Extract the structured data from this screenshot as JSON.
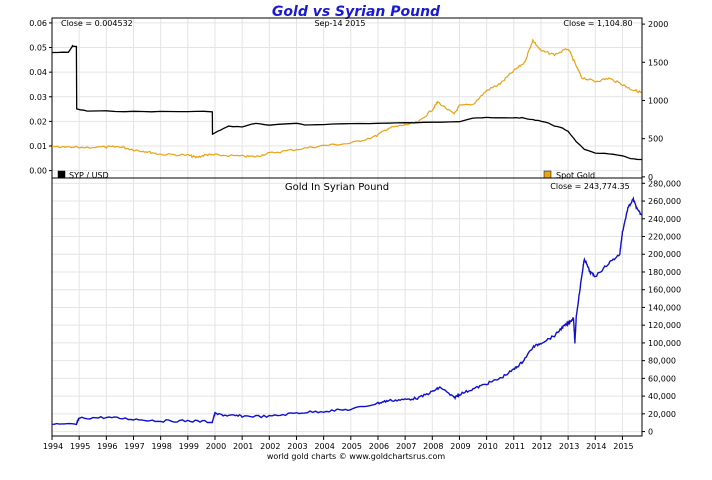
{
  "colors": {
    "title": "#1a1ad0",
    "syp": "#000000",
    "gold": "#e8a317",
    "gold_syp": "#1010cc",
    "grid": "#e4e4e4",
    "frame": "#000000"
  },
  "chart_data": [
    {
      "type": "line",
      "title": "Gold vs Syrian Pound",
      "date_label": "Sep-14  2015",
      "left_close": "Close = 0.004532",
      "right_close": "Close = 1,104.80",
      "ylim_left": [
        -0.003,
        0.062
      ],
      "ylim_right": [
        -15,
        2080
      ],
      "yticks_left": [
        "0.00",
        "0.01",
        "0.02",
        "0.03",
        "0.04",
        "0.05",
        "0.06"
      ],
      "yticks_left_values": [
        0,
        0.01,
        0.02,
        0.03,
        0.04,
        0.05,
        0.06
      ],
      "yticks_right": [
        "0",
        "500",
        "1000",
        "1500",
        "2000"
      ],
      "yticks_right_values": [
        0,
        500,
        1000,
        1500,
        2000
      ],
      "series": [
        {
          "name": "SYP / USD",
          "axis": "left",
          "x": [
            1994.0,
            1994.6,
            1994.75,
            1994.76,
            1994.9,
            1994.91,
            1995.3,
            1996.0,
            1997.0,
            1998.0,
            1999.0,
            1999.9,
            1999.91,
            2000.2,
            2000.5,
            2001.0,
            2001.5,
            2002.0,
            2003.0,
            2003.3,
            2004.0,
            2005.0,
            2006.0,
            2007.0,
            2008.0,
            2009.0,
            2009.5,
            2010.0,
            2010.5,
            2011.0,
            2011.3,
            2011.6,
            2011.9,
            2012.2,
            2012.5,
            2012.8,
            2013.0,
            2013.3,
            2013.6,
            2014.0,
            2014.5,
            2015.0,
            2015.3,
            2015.7
          ],
          "values": [
            0.048,
            0.048,
            0.0505,
            0.0505,
            0.0505,
            0.025,
            0.0242,
            0.0242,
            0.024,
            0.024,
            0.024,
            0.024,
            0.0148,
            0.0165,
            0.018,
            0.0178,
            0.0192,
            0.0185,
            0.0192,
            0.0185,
            0.0188,
            0.0191,
            0.0192,
            0.0194,
            0.0196,
            0.02,
            0.0214,
            0.0215,
            0.0214,
            0.0215,
            0.0214,
            0.0208,
            0.0204,
            0.0196,
            0.0182,
            0.0172,
            0.016,
            0.0118,
            0.0085,
            0.0072,
            0.0068,
            0.006,
            0.0048,
            0.0045
          ]
        },
        {
          "name": "Spot Gold",
          "axis": "right",
          "x": [
            1994.0,
            1995.0,
            1996.0,
            1996.5,
            1997.0,
            1997.5,
            1998.0,
            1999.0,
            1999.3,
            1999.7,
            2000.0,
            2001.0,
            2001.5,
            2002.0,
            2003.0,
            2004.0,
            2005.0,
            2005.9,
            2006.4,
            2007.0,
            2007.5,
            2008.0,
            2008.2,
            2008.8,
            2009.0,
            2009.5,
            2010.0,
            2010.5,
            2011.0,
            2011.4,
            2011.7,
            2012.0,
            2012.5,
            2013.0,
            2013.3,
            2013.5,
            2014.0,
            2014.5,
            2015.0,
            2015.3,
            2015.7
          ],
          "values": [
            385,
            385,
            390,
            395,
            355,
            330,
            295,
            285,
            255,
            290,
            285,
            270,
            265,
            310,
            360,
            410,
            440,
            530,
            640,
            680,
            720,
            880,
            980,
            820,
            930,
            950,
            1130,
            1220,
            1390,
            1500,
            1790,
            1650,
            1600,
            1680,
            1450,
            1300,
            1250,
            1290,
            1210,
            1150,
            1105
          ]
        }
      ],
      "legend": [
        "SYP / USD",
        "Spot Gold"
      ]
    },
    {
      "type": "line",
      "title": "Gold In Syrian Pound",
      "close": "Close = 243,774.35",
      "ylim": [
        -5000,
        286000
      ],
      "yticks": [
        "0",
        "20,000",
        "40,000",
        "60,000",
        "80,000",
        "100,000",
        "120,000",
        "140,000",
        "160,000",
        "180,000",
        "200,000",
        "220,000",
        "240,000",
        "260,000",
        "280,000"
      ],
      "yticks_values": [
        0,
        20000,
        40000,
        60000,
        80000,
        100000,
        120000,
        140000,
        160000,
        180000,
        200000,
        220000,
        240000,
        260000,
        280000
      ],
      "xlim": [
        1994.0,
        2015.72
      ],
      "xticks": [
        "1994",
        "1995",
        "1996",
        "1997",
        "1998",
        "1999",
        "2000",
        "2001",
        "2002",
        "2003",
        "2004",
        "2005",
        "2006",
        "2007",
        "2008",
        "2009",
        "2010",
        "2011",
        "2012",
        "2013",
        "2014",
        "2015"
      ],
      "series": [
        {
          "name": "Gold In Syrian Pound",
          "x": [
            1994.0,
            1994.9,
            1995.0,
            1996.0,
            1997.0,
            1998.0,
            1999.0,
            1999.9,
            2000.0,
            2000.5,
            2001.0,
            2002.0,
            2003.0,
            2004.0,
            2005.0,
            2006.0,
            2006.4,
            2007.0,
            2007.5,
            2008.0,
            2008.3,
            2008.8,
            2009.0,
            2009.5,
            2010.0,
            2010.5,
            2011.0,
            2011.3,
            2011.7,
            2012.0,
            2012.5,
            2012.8,
            2013.0,
            2013.2,
            2013.25,
            2013.3,
            2013.5,
            2013.6,
            2013.8,
            2014.0,
            2014.5,
            2014.9,
            2015.0,
            2015.2,
            2015.4,
            2015.55,
            2015.72
          ],
          "values": [
            8000,
            8000,
            15000,
            16000,
            14000,
            12000,
            12000,
            11000,
            20000,
            18000,
            17500,
            17000,
            21000,
            23000,
            25000,
            32000,
            35000,
            36000,
            38000,
            45000,
            50000,
            38000,
            42000,
            48000,
            54000,
            60000,
            70000,
            78000,
            95000,
            100000,
            108000,
            118000,
            122000,
            128000,
            100000,
            130000,
            175000,
            195000,
            180000,
            175000,
            190000,
            200000,
            225000,
            252000,
            262000,
            250000,
            243774
          ]
        }
      ]
    }
  ],
  "footer": "world gold charts  ©  www.goldchartsrus.com"
}
